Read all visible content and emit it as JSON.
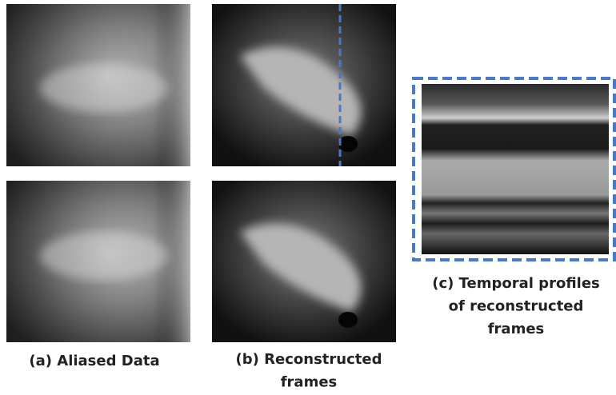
{
  "panels": [
    {
      "caption": [
        "(a) Aliased Data"
      ]
    },
    {
      "caption": [
        "(b) Reconstructed",
        "frames"
      ]
    },
    {
      "caption": [
        "(c) Temporal profiles",
        "of reconstructed",
        "frames"
      ]
    }
  ]
}
